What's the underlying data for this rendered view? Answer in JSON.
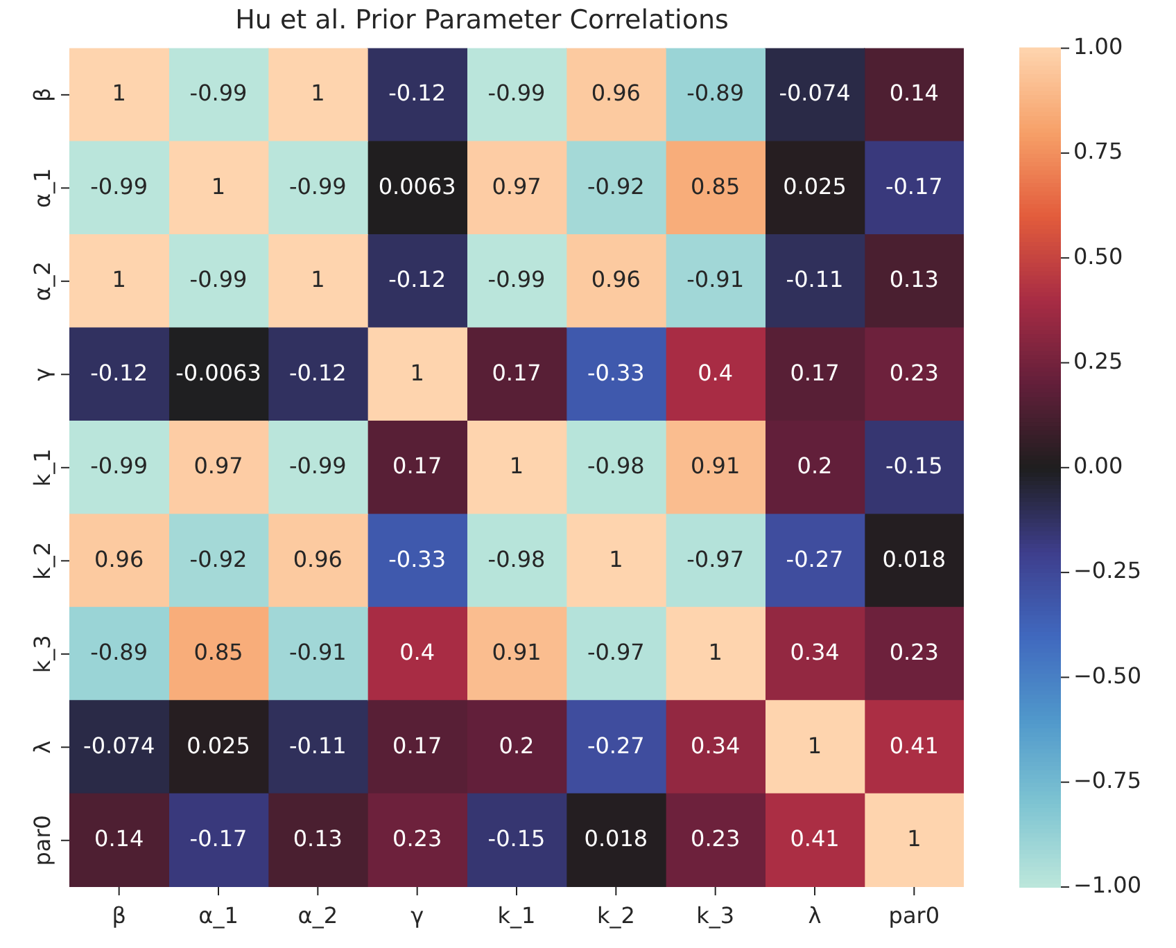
{
  "chart_data": {
    "type": "heatmap",
    "title": "Hu et al. Prior Parameter Correlations",
    "categories": [
      "β",
      "α_1",
      "α_2",
      "γ",
      "k_1",
      "k_2",
      "k_3",
      "λ",
      "par0"
    ],
    "y_categories": [
      "β",
      "α_1",
      "α_2",
      "γ",
      "k_1",
      "k_2",
      "k_3",
      "λ",
      "par0"
    ],
    "cells": [
      [
        1,
        -0.99,
        1,
        -0.12,
        -0.99,
        0.96,
        -0.89,
        -0.074,
        0.14
      ],
      [
        -0.99,
        1,
        -0.99,
        0.0063,
        0.97,
        -0.92,
        0.85,
        0.025,
        -0.17
      ],
      [
        1,
        -0.99,
        1,
        -0.12,
        -0.99,
        0.96,
        -0.91,
        -0.11,
        0.13
      ],
      [
        -0.12,
        -0.0063,
        -0.12,
        1,
        0.17,
        -0.33,
        0.4,
        0.17,
        0.23
      ],
      [
        -0.99,
        0.97,
        -0.99,
        0.17,
        1,
        -0.98,
        0.91,
        0.2,
        -0.15
      ],
      [
        0.96,
        -0.92,
        0.96,
        -0.33,
        -0.98,
        1,
        -0.97,
        -0.27,
        0.018
      ],
      [
        -0.89,
        0.85,
        -0.91,
        0.4,
        0.91,
        -0.97,
        1,
        0.34,
        0.23
      ],
      [
        -0.074,
        0.025,
        -0.11,
        0.17,
        0.2,
        -0.27,
        0.34,
        1,
        0.41
      ],
      [
        0.14,
        -0.17,
        0.13,
        0.23,
        -0.15,
        0.018,
        0.23,
        0.41,
        1
      ]
    ],
    "data_labels": true,
    "clim": [
      -1,
      1
    ],
    "cticks": [
      {
        "value": 1,
        "label": "1.00"
      },
      {
        "value": 0.75,
        "label": "0.75"
      },
      {
        "value": 0.5,
        "label": "0.50"
      },
      {
        "value": 0.25,
        "label": "0.25"
      },
      {
        "value": 0,
        "label": "0.00"
      },
      {
        "value": -0.25,
        "label": "−0.25"
      },
      {
        "value": -0.5,
        "label": "−0.50"
      },
      {
        "value": -0.75,
        "label": "−0.75"
      },
      {
        "value": -1,
        "label": "−1.00"
      }
    ]
  }
}
